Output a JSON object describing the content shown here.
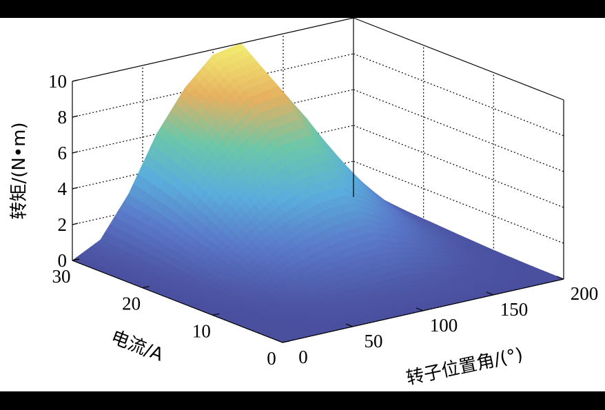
{
  "chart_data": {
    "type": "surface",
    "zlabel": "转矩/(N•m)",
    "ylabel": "电流/A",
    "xlabel": "转子位置角/(°)",
    "x_ticks": [
      "0",
      "50",
      "100",
      "150",
      "200"
    ],
    "y_ticks": [
      "0",
      "10",
      "20",
      "30"
    ],
    "z_ticks": [
      "0",
      "2",
      "4",
      "6",
      "8",
      "10"
    ],
    "xlim": [
      0,
      200
    ],
    "ylim": [
      0,
      30
    ],
    "zlim": [
      0,
      10
    ],
    "grid": true,
    "colormap": [
      "#4a4f9e",
      "#5a78c8",
      "#5aaedc",
      "#6cc7a8",
      "#e6b060",
      "#f2ee72"
    ],
    "angle": [
      0,
      20,
      40,
      60,
      80,
      100,
      120,
      140,
      160,
      180,
      200
    ],
    "current": [
      0,
      5,
      10,
      15,
      20,
      25,
      30
    ],
    "torque": [
      [
        0,
        0,
        0,
        0,
        0,
        0,
        0,
        0,
        0,
        0,
        0
      ],
      [
        0,
        0.04,
        0.15,
        0.3,
        0.41,
        0.49,
        0.5,
        0.38,
        0.23,
        0.1,
        0.03
      ],
      [
        0,
        0.14,
        0.54,
        1.08,
        1.48,
        1.75,
        1.8,
        1.35,
        0.81,
        0.36,
        0.09
      ],
      [
        0,
        0.3,
        1.14,
        2.28,
        3.12,
        3.69,
        3.8,
        2.85,
        1.71,
        0.76,
        0.19
      ],
      [
        0,
        0.5,
        1.86,
        3.72,
        5.08,
        6.01,
        6.2,
        4.65,
        2.79,
        1.24,
        0.31
      ],
      [
        0,
        0.68,
        2.55,
        5.1,
        6.97,
        8.25,
        8.5,
        6.38,
        3.83,
        1.7,
        0.43
      ],
      [
        0,
        0.8,
        3.0,
        6.0,
        8.2,
        9.7,
        10.0,
        7.5,
        4.5,
        2.0,
        0.5
      ]
    ]
  }
}
